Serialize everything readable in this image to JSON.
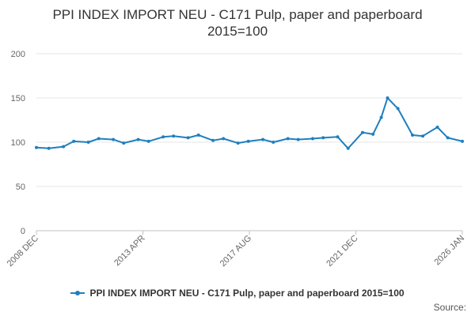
{
  "chart_data": {
    "type": "line",
    "title_line1": "PPI INDEX IMPORT NEU - C171 Pulp, paper and paperboard",
    "title_line2": "2015=100",
    "xlabel": "",
    "ylabel": "",
    "ylim": [
      0,
      200
    ],
    "yticks": [
      0,
      50,
      100,
      150,
      200
    ],
    "xticks": [
      "2008 DEC",
      "2013 APR",
      "2017 AUG",
      "2021 DEC",
      "2026 JAN"
    ],
    "grid": true,
    "legend_position": "bottom",
    "color": "#1f7fbf",
    "series": [
      {
        "name": "PPI INDEX IMPORT NEU - C171 Pulp, paper and paperboard 2015=100",
        "x": [
          "2008-12",
          "2009-06",
          "2010-01",
          "2010-06",
          "2011-01",
          "2011-06",
          "2012-01",
          "2012-06",
          "2013-01",
          "2013-06",
          "2014-01",
          "2014-06",
          "2015-01",
          "2015-06",
          "2016-01",
          "2016-06",
          "2017-01",
          "2017-06",
          "2018-01",
          "2018-06",
          "2019-01",
          "2019-06",
          "2020-01",
          "2020-06",
          "2021-01",
          "2021-06",
          "2022-01",
          "2022-06",
          "2022-10",
          "2023-01",
          "2023-06",
          "2024-01",
          "2024-06",
          "2025-01",
          "2025-06",
          "2026-01"
        ],
        "y": [
          94,
          93,
          95,
          101,
          100,
          104,
          103,
          99,
          103,
          101,
          106,
          107,
          105,
          108,
          102,
          104,
          99,
          101,
          103,
          100,
          104,
          103,
          104,
          105,
          106,
          93,
          111,
          109,
          128,
          150,
          138,
          108,
          107,
          117,
          105,
          101
        ]
      }
    ]
  },
  "source_label": "Source:"
}
